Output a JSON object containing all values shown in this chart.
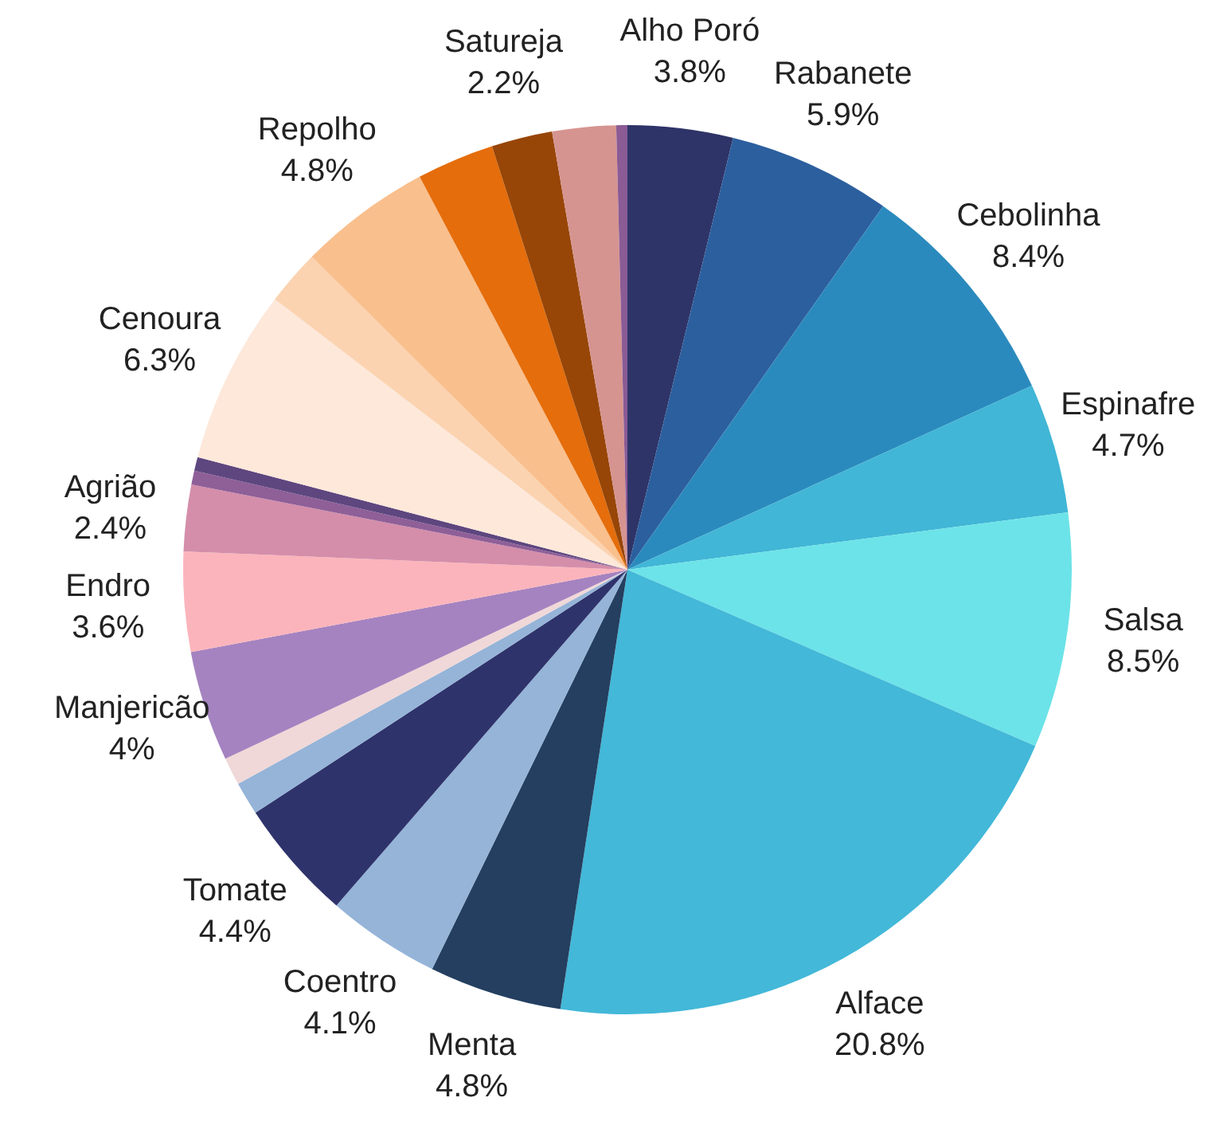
{
  "chart_data": {
    "type": "pie",
    "categories": [
      "Alho Poró",
      "Rabanete",
      "Cebolinha",
      "Espinafre",
      "Salsa",
      "Alface",
      "Menta",
      "Coentro",
      "Tomate",
      null,
      null,
      "Manjericão",
      "Endro",
      "Agrião",
      null,
      null,
      "Cenoura",
      null,
      "Repolho",
      null,
      "Satureja",
      null,
      null
    ],
    "values": [
      3.8,
      5.9,
      8.4,
      4.7,
      8.5,
      20.8,
      4.8,
      4.1,
      4.4,
      1.2,
      1.0,
      4,
      3.6,
      2.4,
      0.5,
      0.5,
      6.3,
      2.0,
      4.8,
      2.8,
      2.2,
      2.3,
      0.4
    ],
    "value_labels": [
      "3.8%",
      "5.9%",
      "8.4%",
      "4.7%",
      "8.5%",
      "20.8%",
      "4.8%",
      "4.1%",
      "4.4%",
      null,
      null,
      "4%",
      "3.6%",
      "2.4%",
      null,
      null,
      "6.3%",
      null,
      "4.8%",
      null,
      "2.2%",
      null,
      null
    ],
    "colors": [
      "#2e3468",
      "#2c5f9e",
      "#2b8abd",
      "#41b6d6",
      "#6ce3e8",
      "#43b8d8",
      "#243f60",
      "#95b4d8",
      "#2f336b",
      "#95b4d8",
      "#f0d8d8",
      "#a583c0",
      "#fbb4bb",
      "#d48eaa",
      "#8f5f98",
      "#5e467f",
      "#fde8da",
      "#fbd3b0",
      "#f9bf8d",
      "#e56d0b",
      "#974607",
      "#d69490",
      "#8a5b95"
    ],
    "legend": false
  }
}
